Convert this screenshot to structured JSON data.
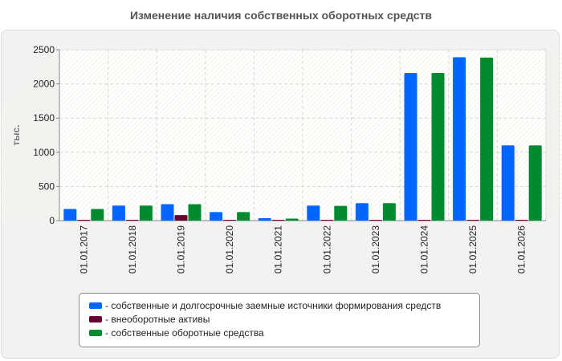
{
  "chart_data": {
    "type": "bar",
    "title": "Изменение наличия собственных оборотных средств",
    "ylabel": "тыс.",
    "ylim": [
      0,
      2500
    ],
    "yticks": [
      0,
      500,
      1000,
      1500,
      2000,
      2500
    ],
    "categories": [
      "01.01.2017",
      "01.01.2018",
      "01.01.2019",
      "01.01.2020",
      "01.01.2021",
      "01.01.2022",
      "01.01.2023",
      "01.01.2024",
      "01.01.2025",
      "01.01.2026"
    ],
    "series": [
      {
        "name": "- собственные и долгосрочные заемные источники формирования средств",
        "color": "#0066ff",
        "values": [
          170,
          220,
          240,
          125,
          35,
          220,
          255,
          2160,
          2390,
          1100
        ]
      },
      {
        "name": "- внеоборотные активы",
        "color": "#660033",
        "values": [
          5,
          5,
          80,
          5,
          5,
          5,
          5,
          5,
          5,
          5
        ]
      },
      {
        "name": "- собственные оборотные средства",
        "color": "#008c2e",
        "values": [
          170,
          220,
          240,
          125,
          30,
          215,
          255,
          2160,
          2385,
          1100
        ]
      }
    ],
    "grid": true,
    "legend_position": "bottom"
  }
}
